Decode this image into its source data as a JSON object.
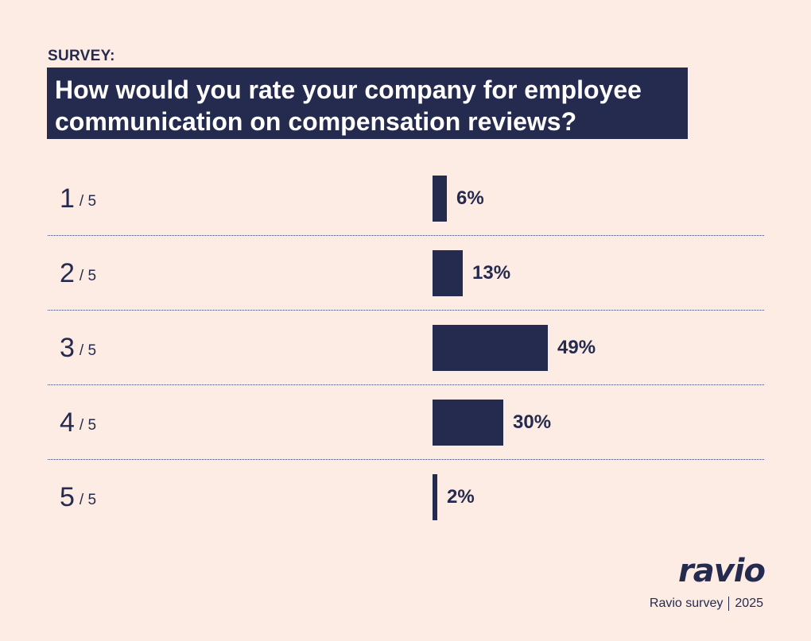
{
  "kicker": "SURVEY:",
  "question_line1": "How would you rate your company for employee",
  "question_line2": "communication on compensation reviews?",
  "brand": "ravio",
  "footer": {
    "left": "Ravio survey",
    "right": "2025"
  },
  "colors": {
    "background": "#fdece4",
    "accent": "#252a4f"
  },
  "chart_data": {
    "type": "bar",
    "orientation": "horizontal",
    "categories": [
      {
        "num": "1",
        "den": "/ 5"
      },
      {
        "num": "2",
        "den": "/ 5"
      },
      {
        "num": "3",
        "den": "/ 5"
      },
      {
        "num": "4",
        "den": "/ 5"
      },
      {
        "num": "5",
        "den": "/ 5"
      }
    ],
    "values": [
      6,
      13,
      49,
      30,
      2
    ],
    "value_labels": [
      "6%",
      "13%",
      "49%",
      "30%",
      "2%"
    ],
    "unit": "%"
  }
}
